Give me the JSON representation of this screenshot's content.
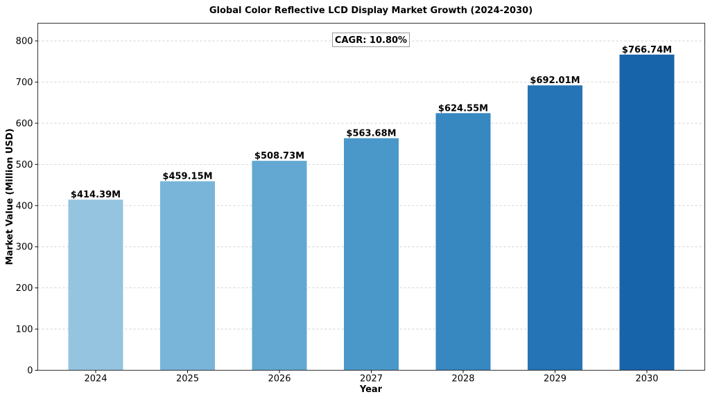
{
  "chart_data": {
    "type": "bar",
    "title": "Global Color Reflective LCD Display Market Growth (2024-2030)",
    "xlabel": "Year",
    "ylabel": "Market Value (Million USD)",
    "categories": [
      "2024",
      "2025",
      "2026",
      "2027",
      "2028",
      "2029",
      "2030"
    ],
    "values": [
      414.39,
      459.15,
      508.73,
      563.68,
      624.55,
      692.01,
      766.74
    ],
    "data_labels": [
      "$414.39M",
      "$459.15M",
      "$508.73M",
      "$563.68M",
      "$624.55M",
      "$692.01M",
      "$766.74M"
    ],
    "ylim": [
      0,
      843
    ],
    "yticks": [
      0,
      100,
      200,
      300,
      400,
      500,
      600,
      700,
      800
    ],
    "grid": true,
    "annotation": "CAGR: 10.80%",
    "colors": [
      "#94c4df",
      "#79b5d9",
      "#62a8d2",
      "#4a98c9",
      "#3787c0",
      "#2474b6",
      "#1864aa"
    ]
  }
}
